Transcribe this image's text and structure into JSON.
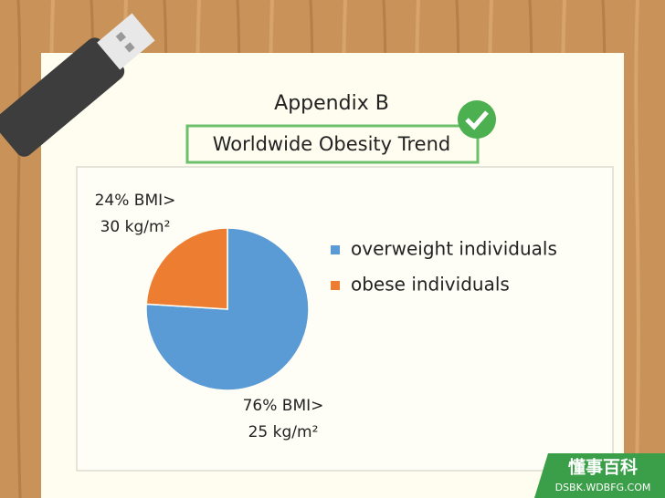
{
  "header": {
    "title": "Appendix B",
    "subtitle": "Worldwide Obesity Trend"
  },
  "chart_data": {
    "type": "pie",
    "categories": [
      "overweight individuals",
      "obese individuals"
    ],
    "values": [
      76,
      24
    ],
    "value_labels": [
      [
        "76% BMI>",
        "25 kg/m²"
      ],
      [
        "24% BMI>",
        "30 kg/m²"
      ]
    ],
    "colors": [
      "#5b9bd5",
      "#ed7d31"
    ]
  },
  "watermark": {
    "name": "懂事百科",
    "url": "DSBK.WDBFG.COM"
  }
}
